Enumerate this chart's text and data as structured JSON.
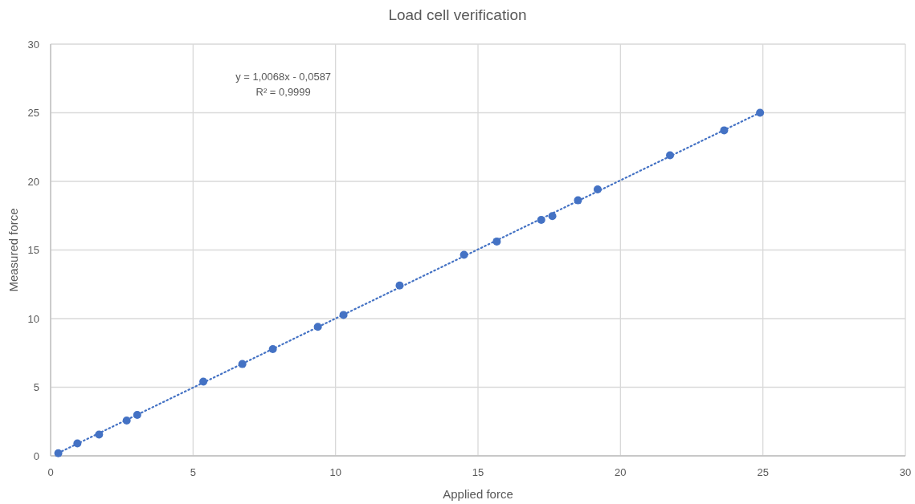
{
  "chart_data": {
    "type": "scatter",
    "title": "Load cell verification",
    "xlabel": "Applied force",
    "ylabel": "Measured force",
    "xlim": [
      0,
      30
    ],
    "xticks": [
      0,
      5,
      10,
      15,
      20,
      25,
      30
    ],
    "ylim": [
      0,
      30
    ],
    "yticks": [
      0,
      5,
      10,
      15,
      20,
      25,
      30
    ],
    "grid": true,
    "annotations": [
      "y = 1,0068x - 0,0587",
      "R² = 0,9999"
    ],
    "series": [
      {
        "color": "#4472c4",
        "marker": "circle",
        "x": [
          0.27,
          0.94,
          1.7,
          2.67,
          3.04,
          5.36,
          6.73,
          7.8,
          9.38,
          10.28,
          12.25,
          14.51,
          15.66,
          17.22,
          17.61,
          18.51,
          19.2,
          21.74,
          23.64,
          24.9
        ],
        "values": [
          0.19,
          0.91,
          1.55,
          2.57,
          2.98,
          5.41,
          6.69,
          7.78,
          9.4,
          10.27,
          12.41,
          14.65,
          15.62,
          17.19,
          17.47,
          18.62,
          19.42,
          21.9,
          23.72,
          25.0
        ]
      },
      {
        "type": "line",
        "color": "#4472c4",
        "marker": "none",
        "line_style": "dotted",
        "x": [
          0.27,
          24.9
        ],
        "values": [
          0.21,
          25.01
        ]
      }
    ]
  }
}
